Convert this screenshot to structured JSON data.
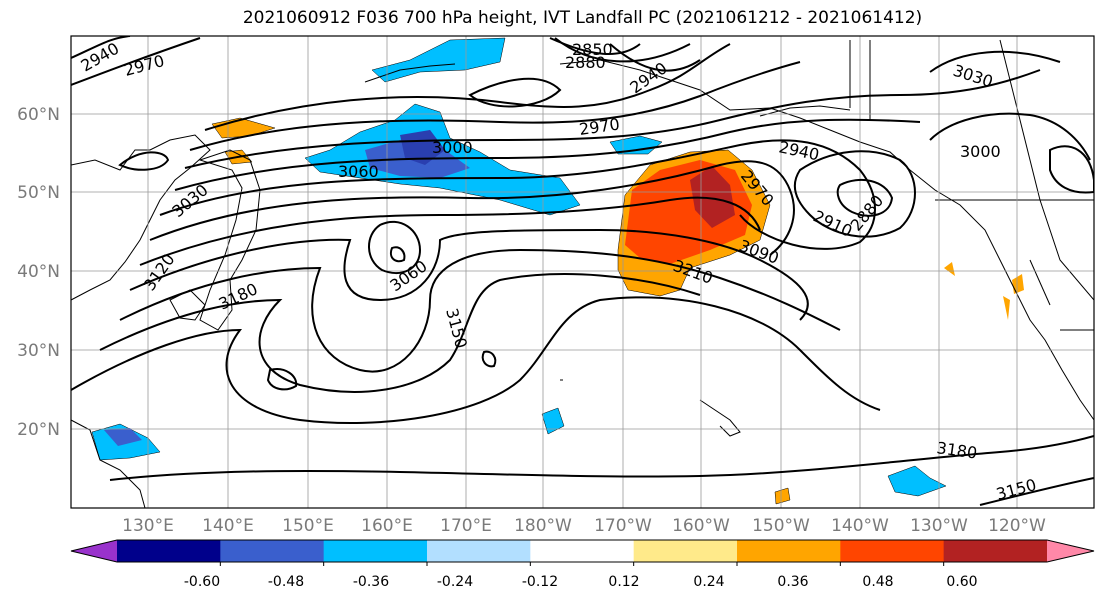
{
  "title": "2021060912 F036 700 hPa height, IVT Landfall PC (2021061212 - 2021061412)",
  "longitude_labels": [
    "130°E",
    "140°E",
    "150°E",
    "160°E",
    "170°E",
    "180°W",
    "170°W",
    "160°W",
    "150°W",
    "140°W",
    "130°W",
    "120°W"
  ],
  "latitude_labels": [
    "60°N",
    "50°N",
    "40°N",
    "30°N",
    "20°N"
  ],
  "contour_labels": [
    "2940",
    "2970",
    "2850",
    "2880",
    "2940",
    "2970",
    "3000",
    "3060",
    "3030",
    "3120",
    "3180",
    "3060",
    "3150",
    "2940",
    "2970",
    "3090",
    "3210",
    "2910",
    "2880",
    "3030",
    "3000",
    "3180",
    "3150"
  ],
  "colorbar": {
    "ticks": [
      "-0.60",
      "-0.48",
      "-0.36",
      "-0.24",
      "-0.12",
      "0.12",
      "0.24",
      "0.36",
      "0.48",
      "0.60"
    ],
    "colors": [
      "#9932cc",
      "#00008b",
      "#3a5fcd",
      "#00bfff",
      "#b2dfff",
      "#ffffff",
      "#ffea8a",
      "#ffa500",
      "#ff4500",
      "#b22222",
      "#ff88a8"
    ]
  },
  "colors": {
    "land_outline": "#000000",
    "grid": "#999999",
    "contour": "#000000"
  }
}
